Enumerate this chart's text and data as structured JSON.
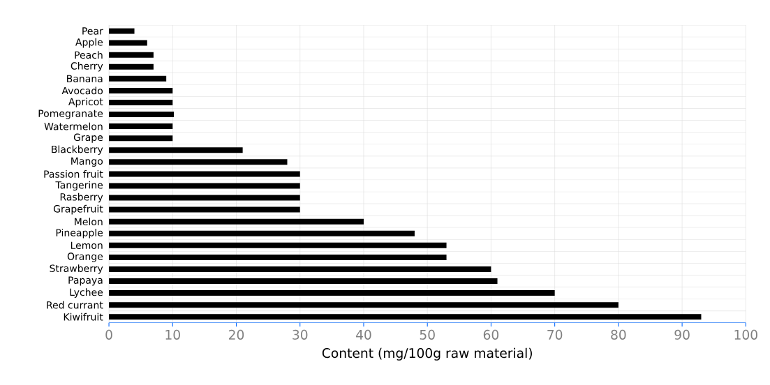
{
  "chart_data": {
    "type": "bar",
    "orientation": "horizontal",
    "xlabel": "Content (mg/100g raw material)",
    "categories": [
      "Pear",
      "Apple",
      "Peach",
      "Cherry",
      "Banana",
      "Avocado",
      "Apricot",
      "Pomegranate",
      "Watermelon",
      "Grape",
      "Blackberry",
      "Mango",
      "Passion fruit",
      "Tangerine",
      "Rasberry",
      "Grapefruit",
      "Melon",
      "Pineapple",
      "Lemon",
      "Orange",
      "Strawberry",
      "Papaya",
      "Lychee",
      "Red currant",
      "Kiwifruit"
    ],
    "values": [
      4,
      6,
      7,
      7,
      9,
      10,
      10,
      10.2,
      10,
      10,
      21,
      28,
      30,
      30,
      30,
      30,
      40,
      48,
      53,
      53,
      60,
      61,
      70,
      80,
      93
    ],
    "color": "#000000",
    "xlim": [
      0,
      100
    ],
    "xticks": [
      0,
      10,
      20,
      30,
      40,
      50,
      60,
      70,
      80,
      90,
      100
    ],
    "grid": true
  }
}
